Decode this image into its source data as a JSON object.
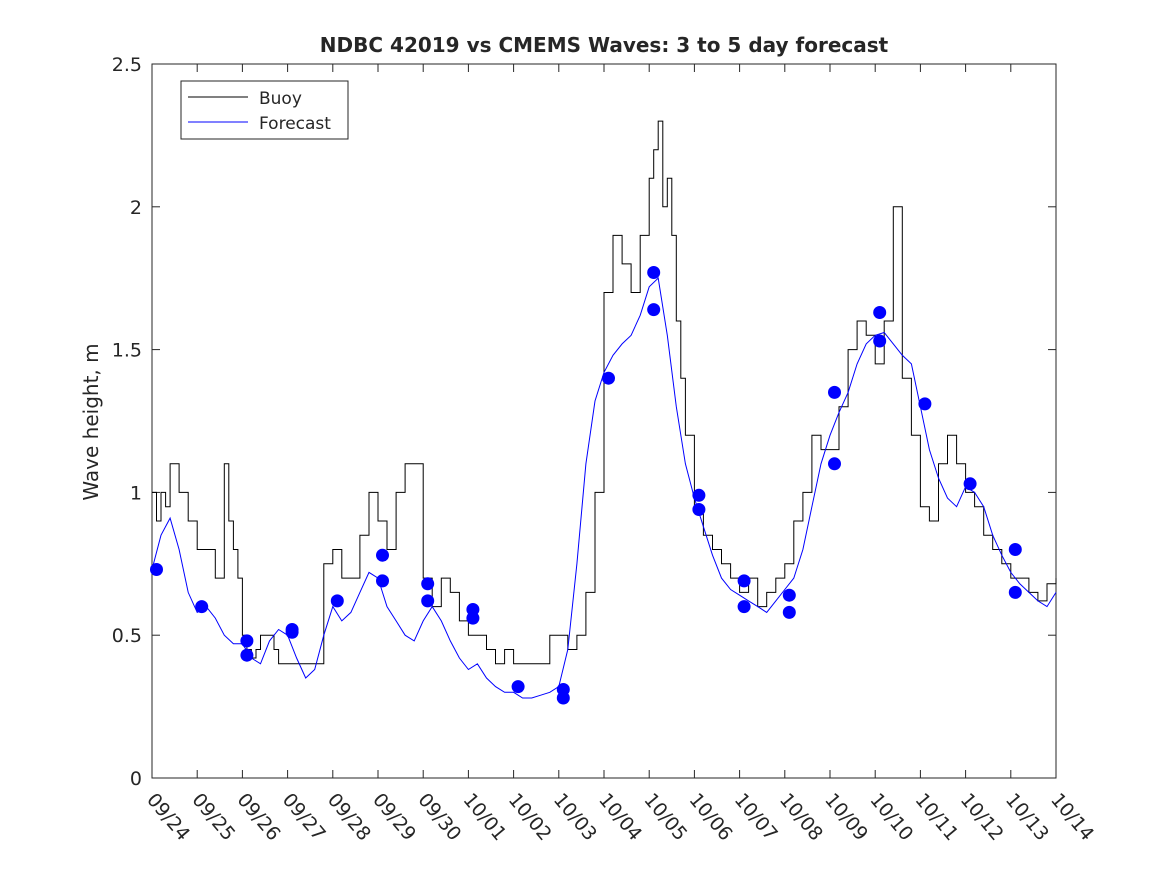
{
  "chart_data": {
    "type": "line",
    "title": "NDBC 42019 vs CMEMS Waves: 3 to 5 day forecast",
    "xlabel": "",
    "ylabel": "Wave height, m",
    "xlim": [
      0,
      20
    ],
    "ylim": [
      0,
      2.5
    ],
    "yticks": [
      0,
      0.5,
      1,
      1.5,
      2,
      2.5
    ],
    "ytick_labels": [
      "0",
      "0.5",
      "1",
      "1.5",
      "2",
      "2.5"
    ],
    "xtick_labels": [
      "09/24",
      "09/25",
      "09/26",
      "09/27",
      "09/28",
      "09/29",
      "09/30",
      "10/01",
      "10/02",
      "10/03",
      "10/04",
      "10/05",
      "10/06",
      "10/07",
      "10/08",
      "10/09",
      "10/10",
      "10/11",
      "10/12",
      "10/13",
      "10/14"
    ],
    "legend": {
      "position": "top-left",
      "entries": [
        {
          "label": "Buoy",
          "color": "#000000"
        },
        {
          "label": "Forecast",
          "color": "#0000ff"
        }
      ]
    },
    "series": [
      {
        "name": "Buoy",
        "color": "#000000",
        "x": [
          0,
          0.1,
          0.2,
          0.3,
          0.4,
          0.5,
          0.6,
          0.7,
          0.8,
          0.9,
          1.0,
          1.2,
          1.4,
          1.6,
          1.7,
          1.8,
          1.9,
          2.0,
          2.1,
          2.2,
          2.3,
          2.4,
          2.5,
          2.6,
          2.7,
          2.8,
          2.9,
          3.0,
          3.1,
          3.2,
          3.4,
          3.6,
          3.8,
          4.0,
          4.2,
          4.4,
          4.6,
          4.8,
          5.0,
          5.2,
          5.4,
          5.6,
          5.8,
          6.0,
          6.2,
          6.4,
          6.6,
          6.8,
          7.0,
          7.2,
          7.4,
          7.6,
          7.8,
          8.0,
          8.2,
          8.4,
          8.6,
          8.8,
          9.0,
          9.2,
          9.4,
          9.6,
          9.8,
          10.0,
          10.2,
          10.4,
          10.6,
          10.8,
          11.0,
          11.1,
          11.2,
          11.3,
          11.4,
          11.5,
          11.6,
          11.7,
          11.8,
          12.0,
          12.2,
          12.4,
          12.6,
          12.8,
          13.0,
          13.2,
          13.4,
          13.6,
          13.8,
          14.0,
          14.2,
          14.4,
          14.6,
          14.8,
          15.0,
          15.2,
          15.4,
          15.6,
          15.8,
          16.0,
          16.2,
          16.4,
          16.6,
          16.8,
          17.0,
          17.2,
          17.4,
          17.6,
          17.8,
          18.0,
          18.2,
          18.4,
          18.6,
          18.8,
          19.0,
          19.2,
          19.4,
          19.6,
          19.8,
          20.0
        ],
        "values": [
          1.0,
          0.9,
          1.0,
          0.95,
          1.1,
          1.1,
          1.0,
          1.0,
          0.9,
          0.9,
          0.8,
          0.8,
          0.7,
          1.1,
          0.9,
          0.8,
          0.7,
          0.5,
          0.45,
          0.42,
          0.45,
          0.5,
          0.5,
          0.5,
          0.45,
          0.4,
          0.4,
          0.4,
          0.4,
          0.4,
          0.4,
          0.4,
          0.75,
          0.8,
          0.7,
          0.7,
          0.85,
          1.0,
          0.9,
          0.8,
          1.0,
          1.1,
          1.1,
          0.7,
          0.6,
          0.7,
          0.65,
          0.55,
          0.5,
          0.5,
          0.45,
          0.4,
          0.45,
          0.4,
          0.4,
          0.4,
          0.4,
          0.5,
          0.5,
          0.45,
          0.5,
          0.65,
          1.0,
          1.7,
          1.9,
          1.8,
          1.7,
          1.9,
          2.1,
          2.2,
          2.3,
          2.0,
          2.1,
          1.9,
          1.6,
          1.4,
          1.2,
          0.95,
          0.85,
          0.8,
          0.75,
          0.7,
          0.65,
          0.7,
          0.6,
          0.65,
          0.7,
          0.75,
          0.9,
          1.0,
          1.2,
          1.15,
          1.15,
          1.3,
          1.5,
          1.6,
          1.55,
          1.45,
          1.6,
          2.0,
          1.4,
          1.2,
          0.95,
          0.9,
          1.1,
          1.2,
          1.1,
          1.0,
          0.95,
          0.85,
          0.8,
          0.75,
          0.7,
          0.7,
          0.65,
          0.62,
          0.68,
          0.7
        ]
      },
      {
        "name": "Forecast",
        "color": "#0000ff",
        "x": [
          0,
          0.2,
          0.4,
          0.6,
          0.8,
          1.0,
          1.2,
          1.4,
          1.6,
          1.8,
          2.0,
          2.2,
          2.4,
          2.6,
          2.8,
          3.0,
          3.2,
          3.4,
          3.6,
          3.8,
          4.0,
          4.2,
          4.4,
          4.6,
          4.8,
          5.0,
          5.2,
          5.4,
          5.6,
          5.8,
          6.0,
          6.2,
          6.4,
          6.6,
          6.8,
          7.0,
          7.2,
          7.4,
          7.6,
          7.8,
          8.0,
          8.2,
          8.4,
          8.6,
          8.8,
          9.0,
          9.2,
          9.4,
          9.6,
          9.8,
          10.0,
          10.2,
          10.4,
          10.6,
          10.8,
          11.0,
          11.2,
          11.4,
          11.6,
          11.8,
          12.0,
          12.2,
          12.4,
          12.6,
          12.8,
          13.0,
          13.2,
          13.4,
          13.6,
          13.8,
          14.0,
          14.2,
          14.4,
          14.6,
          14.8,
          15.0,
          15.2,
          15.4,
          15.6,
          15.8,
          16.0,
          16.2,
          16.4,
          16.6,
          16.8,
          17.0,
          17.2,
          17.4,
          17.6,
          17.8,
          18.0,
          18.2,
          18.4,
          18.6,
          18.8,
          19.0,
          19.2,
          19.4,
          19.6,
          19.8,
          20.0
        ],
        "values": [
          0.73,
          0.85,
          0.91,
          0.8,
          0.65,
          0.58,
          0.6,
          0.56,
          0.5,
          0.47,
          0.47,
          0.42,
          0.4,
          0.48,
          0.52,
          0.5,
          0.42,
          0.35,
          0.38,
          0.5,
          0.6,
          0.55,
          0.58,
          0.65,
          0.72,
          0.7,
          0.6,
          0.55,
          0.5,
          0.48,
          0.55,
          0.6,
          0.55,
          0.48,
          0.42,
          0.38,
          0.4,
          0.35,
          0.32,
          0.3,
          0.3,
          0.28,
          0.28,
          0.29,
          0.3,
          0.32,
          0.45,
          0.75,
          1.1,
          1.32,
          1.42,
          1.48,
          1.52,
          1.55,
          1.62,
          1.72,
          1.75,
          1.55,
          1.3,
          1.1,
          0.98,
          0.88,
          0.78,
          0.7,
          0.66,
          0.64,
          0.62,
          0.6,
          0.58,
          0.62,
          0.66,
          0.7,
          0.8,
          0.95,
          1.1,
          1.2,
          1.28,
          1.35,
          1.45,
          1.52,
          1.55,
          1.56,
          1.52,
          1.48,
          1.45,
          1.3,
          1.15,
          1.05,
          0.98,
          0.95,
          1.02,
          1.0,
          0.95,
          0.85,
          0.78,
          0.72,
          0.68,
          0.65,
          0.62,
          0.6,
          0.65
        ]
      }
    ],
    "forecast_points": {
      "color": "#0000ff",
      "x": [
        0.1,
        1.1,
        2.1,
        2.1,
        3.1,
        3.1,
        4.1,
        5.1,
        5.1,
        6.1,
        6.1,
        7.1,
        7.1,
        8.1,
        9.1,
        9.1,
        10.1,
        11.1,
        11.1,
        12.1,
        12.1,
        13.1,
        13.1,
        14.1,
        14.1,
        15.1,
        15.1,
        16.1,
        16.1,
        17.1,
        18.1,
        19.1,
        19.1
      ],
      "values": [
        0.73,
        0.6,
        0.48,
        0.43,
        0.52,
        0.51,
        0.62,
        0.78,
        0.69,
        0.68,
        0.62,
        0.59,
        0.56,
        0.32,
        0.31,
        0.28,
        1.4,
        1.77,
        1.64,
        0.99,
        0.94,
        0.69,
        0.6,
        0.64,
        0.58,
        1.35,
        1.1,
        1.63,
        1.53,
        1.31,
        1.03,
        0.8,
        0.65
      ]
    }
  }
}
